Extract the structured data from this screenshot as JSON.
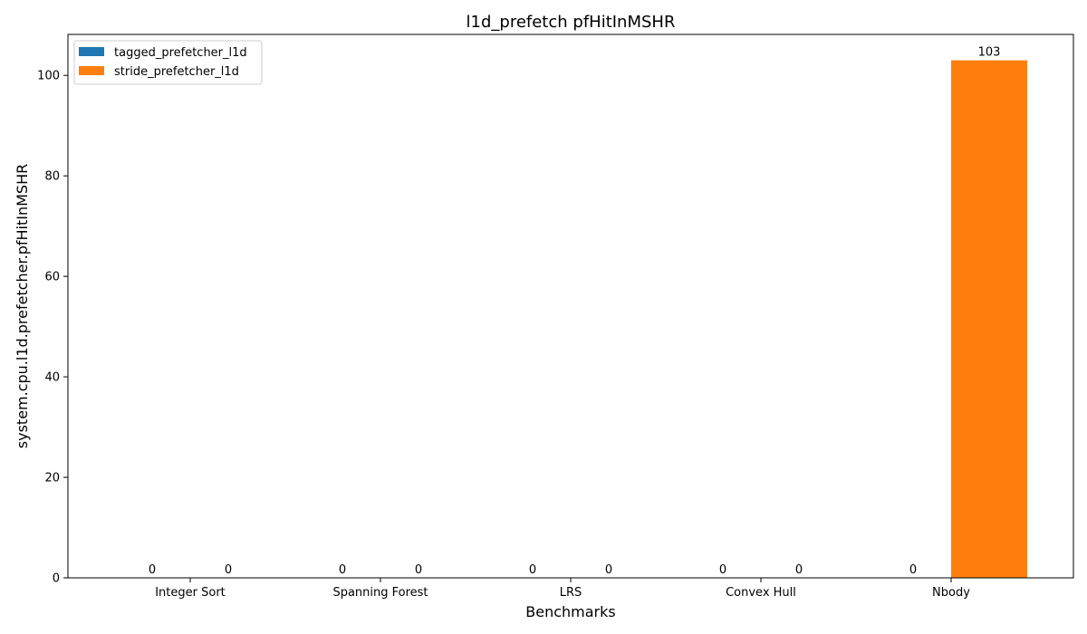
{
  "chart_data": {
    "type": "bar",
    "title": "l1d_prefetch pfHitInMSHR",
    "xlabel": "Benchmarks",
    "ylabel": "system.cpu.l1d.prefetcher.pfHitInMSHR",
    "categories": [
      "Integer Sort",
      "Spanning Forest",
      "LRS",
      "Convex Hull",
      "Nbody"
    ],
    "series": [
      {
        "name": "tagged_prefetcher_l1d",
        "color": "#1f77b4",
        "values": [
          0,
          0,
          0,
          0,
          0
        ]
      },
      {
        "name": "stride_prefetcher_l1d",
        "color": "#ff7f0e",
        "values": [
          0,
          0,
          0,
          0,
          103
        ]
      }
    ],
    "data_labels": [
      [
        "0",
        "0",
        "0",
        "0",
        "0"
      ],
      [
        "0",
        "0",
        "0",
        "0",
        "103"
      ]
    ],
    "ylim": [
      0,
      108.15
    ],
    "yticks": [
      0,
      20,
      40,
      60,
      80,
      100
    ],
    "legend_position": "top-left",
    "grid": false
  }
}
